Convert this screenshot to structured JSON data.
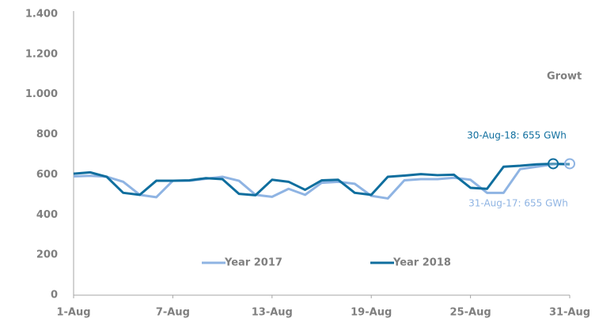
{
  "chart_data": {
    "type": "line",
    "categories": [
      "1-Aug",
      null,
      null,
      null,
      null,
      null,
      "7-Aug",
      null,
      null,
      null,
      null,
      null,
      "13-Aug",
      null,
      null,
      null,
      null,
      null,
      "19-Aug",
      null,
      null,
      null,
      null,
      null,
      "25-Aug",
      null,
      null,
      null,
      null,
      null,
      "31-Aug"
    ],
    "series": [
      {
        "name": "Year 2017",
        "color": "#8fb4e3",
        "values": [
          592,
          595,
          590,
          565,
          500,
          488,
          570,
          570,
          580,
          590,
          570,
          500,
          490,
          530,
          500,
          560,
          565,
          555,
          495,
          482,
          572,
          578,
          578,
          585,
          575,
          510,
          510,
          628,
          640,
          652,
          655
        ]
      },
      {
        "name": "Year 2018",
        "color": "#0f6e9e",
        "values": [
          605,
          612,
          590,
          510,
          500,
          570,
          570,
          572,
          583,
          578,
          505,
          498,
          575,
          565,
          525,
          572,
          575,
          510,
          500,
          590,
          596,
          603,
          598,
          600,
          535,
          530,
          640,
          645,
          652,
          655,
          652
        ]
      }
    ],
    "ylim": [
      0,
      1400
    ],
    "yticks": [
      0,
      200,
      400,
      600,
      800,
      {
        "value": 1000,
        "label": "1.000"
      },
      {
        "value": 1200,
        "label": "1.200"
      },
      {
        "value": 1400,
        "label": "1.400"
      }
    ],
    "annotations": [
      "30-Aug-18: 655 GWh",
      "31-Aug-17: 655 GWh",
      "Growt"
    ]
  }
}
